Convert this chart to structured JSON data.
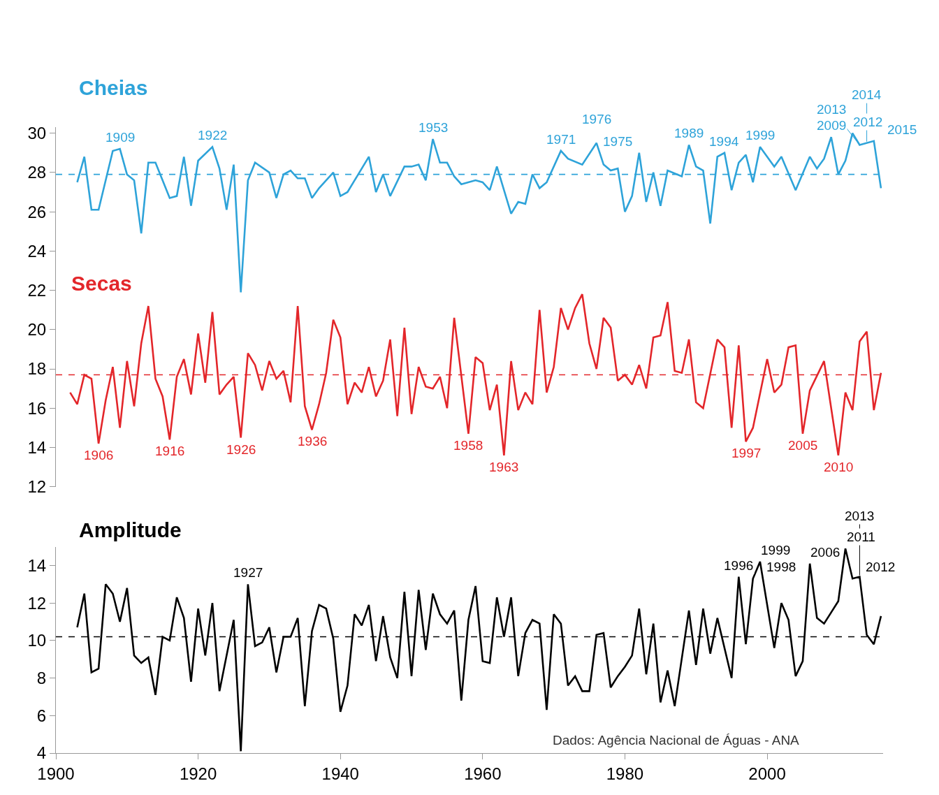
{
  "chart_data": [
    {
      "type": "line",
      "xlim": [
        1900,
        2016.3
      ],
      "ylim": [
        12,
        30.3
      ],
      "yticks": [
        12,
        14,
        16,
        18,
        20,
        22,
        24,
        26,
        28,
        30
      ],
      "tick_labels": "y",
      "series": [
        {
          "name": "Cheias",
          "color": "#2ea3d9",
          "x": [
            1903,
            1904,
            1905,
            1906,
            1908,
            1909,
            1910,
            1911,
            1912,
            1913,
            1914,
            1916,
            1917,
            1918,
            1919,
            1920,
            1922,
            1923,
            1924,
            1925,
            1926,
            1927,
            1928,
            1930,
            1931,
            1932,
            1933,
            1934,
            1935,
            1936,
            1937,
            1939,
            1940,
            1941,
            1944,
            1945,
            1946,
            1947,
            1949,
            1950,
            1951,
            1952,
            1953,
            1954,
            1955,
            1956,
            1957,
            1959,
            1960,
            1961,
            1962,
            1964,
            1965,
            1966,
            1967,
            1968,
            1969,
            1971,
            1972,
            1974,
            1976,
            1977,
            1978,
            1979,
            1980,
            1981,
            1982,
            1983,
            1984,
            1985,
            1986,
            1988,
            1989,
            1990,
            1991,
            1992,
            1993,
            1994,
            1995,
            1996,
            1997,
            1998,
            1999,
            2001,
            2002,
            2004,
            2006,
            2007,
            2008,
            2009,
            2010,
            2011,
            2012,
            2013,
            2015,
            2016
          ],
          "values": [
            27.5,
            28.8,
            26.1,
            26.1,
            29.1,
            29.2,
            27.9,
            27.6,
            24.9,
            28.5,
            28.5,
            26.7,
            26.8,
            28.8,
            26.3,
            28.6,
            29.3,
            28.2,
            26.1,
            28.4,
            21.9,
            27.6,
            28.5,
            28.0,
            26.7,
            27.9,
            28.1,
            27.7,
            27.7,
            26.7,
            27.2,
            28.0,
            26.8,
            27.0,
            28.8,
            27.0,
            27.9,
            26.8,
            28.3,
            28.3,
            28.4,
            27.6,
            29.7,
            28.5,
            28.5,
            27.8,
            27.4,
            27.6,
            27.5,
            27.1,
            28.3,
            25.9,
            26.5,
            26.4,
            27.9,
            27.2,
            27.5,
            29.1,
            28.7,
            28.4,
            29.5,
            28.4,
            28.1,
            28.2,
            26.0,
            26.8,
            29.0,
            26.5,
            28.0,
            26.3,
            28.1,
            27.8,
            29.4,
            28.3,
            28.1,
            25.4,
            28.8,
            29.0,
            27.1,
            28.5,
            28.9,
            27.5,
            29.3,
            28.3,
            28.8,
            27.1,
            28.8,
            28.2,
            28.7,
            29.8,
            27.9,
            28.6,
            30.0,
            29.4,
            29.6,
            27.2
          ]
        },
        {
          "name": "Secas",
          "color": "#e3262a",
          "x": [
            1902,
            1903,
            1904,
            1905,
            1906,
            1907,
            1908,
            1909,
            1910,
            1911,
            1912,
            1913,
            1914,
            1915,
            1916,
            1917,
            1918,
            1919,
            1920,
            1921,
            1922,
            1923,
            1924,
            1925,
            1926,
            1927,
            1928,
            1929,
            1930,
            1931,
            1932,
            1933,
            1934,
            1935,
            1936,
            1937,
            1938,
            1939,
            1940,
            1941,
            1942,
            1943,
            1944,
            1945,
            1946,
            1947,
            1948,
            1949,
            1950,
            1951,
            1952,
            1953,
            1954,
            1955,
            1956,
            1958,
            1959,
            1960,
            1961,
            1962,
            1963,
            1964,
            1965,
            1966,
            1967,
            1968,
            1969,
            1970,
            1971,
            1972,
            1973,
            1974,
            1975,
            1976,
            1977,
            1978,
            1979,
            1980,
            1981,
            1982,
            1983,
            1984,
            1985,
            1986,
            1987,
            1988,
            1989,
            1990,
            1991,
            1993,
            1994,
            1995,
            1996,
            1997,
            1998,
            2000,
            2001,
            2002,
            2003,
            2004,
            2005,
            2006,
            2008,
            2010,
            2011,
            2012,
            2013,
            2014,
            2015,
            2016
          ],
          "values": [
            16.8,
            16.2,
            17.7,
            17.5,
            14.2,
            16.4,
            18.1,
            15.0,
            18.4,
            16.1,
            19.3,
            21.2,
            17.5,
            16.6,
            14.4,
            17.6,
            18.5,
            16.7,
            19.8,
            17.3,
            20.9,
            16.7,
            17.2,
            17.6,
            14.5,
            18.8,
            18.2,
            16.9,
            18.4,
            17.5,
            17.9,
            16.3,
            21.2,
            16.1,
            14.9,
            16.2,
            17.8,
            20.5,
            19.6,
            16.2,
            17.3,
            16.8,
            18.1,
            16.6,
            17.4,
            19.5,
            15.6,
            20.1,
            15.7,
            18.1,
            17.1,
            17.0,
            17.6,
            16.0,
            20.6,
            14.7,
            18.6,
            18.3,
            15.9,
            17.2,
            13.6,
            18.4,
            15.9,
            16.8,
            16.2,
            21.0,
            16.8,
            18.1,
            21.1,
            20.0,
            21.1,
            21.8,
            19.3,
            18.0,
            20.6,
            20.1,
            17.4,
            17.7,
            17.2,
            18.2,
            17.0,
            19.6,
            19.7,
            21.4,
            17.9,
            17.8,
            19.5,
            16.3,
            16.0,
            19.5,
            19.1,
            15.0,
            19.2,
            14.3,
            15.0,
            18.5,
            16.8,
            17.2,
            19.1,
            19.2,
            14.7,
            16.9,
            18.4,
            13.6,
            16.8,
            15.9,
            19.4,
            19.9,
            15.9,
            17.8
          ]
        }
      ],
      "ref_lines": [
        {
          "axis": "y",
          "value": 27.9,
          "color": "#2ea3d9",
          "line_style": "dashed"
        },
        {
          "axis": "y",
          "value": 17.7,
          "color": "#e3262a",
          "line_style": "dashed"
        }
      ],
      "annotations": [
        {
          "text": "1909",
          "x": 1909,
          "y": 29.2
        },
        {
          "text": "1922",
          "x": 1922,
          "y": 29.3
        },
        {
          "text": "1953",
          "x": 1953,
          "y": 29.7
        },
        {
          "text": "1971",
          "x": 1971,
          "y": 29.1
        },
        {
          "text": "1975",
          "x": 1975,
          "y": 29.0
        },
        {
          "text": "1976",
          "x": 1976,
          "y": 29.5
        },
        {
          "text": "1989",
          "x": 1989,
          "y": 29.4
        },
        {
          "text": "1994",
          "x": 1994,
          "y": 29.0
        },
        {
          "text": "1999",
          "x": 1999,
          "y": 29.3
        },
        {
          "text": "2009",
          "x": 2009,
          "y": 29.8
        },
        {
          "text": "2012",
          "x": 2012,
          "y": 30.0
        },
        {
          "text": "2013",
          "x": 2013,
          "y": 29.4
        },
        {
          "text": "2014",
          "x": 2014,
          "y": 29.5
        },
        {
          "text": "2015",
          "x": 2015,
          "y": 29.6
        },
        {
          "text": "1906",
          "x": 1906,
          "y": 14.2
        },
        {
          "text": "1916",
          "x": 1916,
          "y": 14.4
        },
        {
          "text": "1926",
          "x": 1926,
          "y": 14.5
        },
        {
          "text": "1936",
          "x": 1936,
          "y": 14.9
        },
        {
          "text": "1958",
          "x": 1958,
          "y": 14.7
        },
        {
          "text": "1963",
          "x": 1963,
          "y": 13.6
        },
        {
          "text": "1997",
          "x": 1997,
          "y": 14.3
        },
        {
          "text": "2005",
          "x": 2005,
          "y": 14.7
        },
        {
          "text": "2010",
          "x": 2010,
          "y": 13.6
        }
      ]
    },
    {
      "type": "line",
      "xlim": [
        1900,
        2016.3
      ],
      "xticks": [
        1900,
        1920,
        1940,
        1960,
        1980,
        2000
      ],
      "ylim": [
        4,
        15
      ],
      "yticks": [
        4,
        6,
        8,
        10,
        12,
        14
      ],
      "series": [
        {
          "name": "Amplitude",
          "color": "#000000",
          "x": [
            1903,
            1904,
            1905,
            1906,
            1907,
            1908,
            1909,
            1910,
            1911,
            1912,
            1913,
            1914,
            1915,
            1916,
            1917,
            1918,
            1919,
            1920,
            1921,
            1922,
            1923,
            1925,
            1926,
            1927,
            1928,
            1929,
            1930,
            1931,
            1932,
            1933,
            1934,
            1935,
            1936,
            1937,
            1938,
            1939,
            1940,
            1941,
            1942,
            1943,
            1944,
            1945,
            1946,
            1947,
            1948,
            1949,
            1950,
            1951,
            1952,
            1953,
            1954,
            1955,
            1956,
            1957,
            1958,
            1959,
            1960,
            1961,
            1962,
            1963,
            1964,
            1965,
            1966,
            1967,
            1968,
            1969,
            1970,
            1971,
            1972,
            1973,
            1974,
            1975,
            1976,
            1977,
            1978,
            1979,
            1980,
            1981,
            1982,
            1983,
            1984,
            1985,
            1986,
            1987,
            1989,
            1990,
            1991,
            1992,
            1993,
            1995,
            1996,
            1997,
            1998,
            1999,
            2001,
            2002,
            2003,
            2004,
            2005,
            2006,
            2007,
            2008,
            2009,
            2010,
            2011,
            2012,
            2013,
            2014,
            2015,
            2016
          ],
          "values": [
            10.7,
            12.5,
            8.3,
            8.5,
            13.0,
            12.5,
            11.0,
            12.8,
            9.2,
            8.8,
            9.1,
            7.1,
            10.2,
            10.0,
            12.3,
            11.2,
            7.8,
            11.7,
            9.2,
            12.0,
            7.3,
            11.1,
            4.1,
            13.0,
            9.7,
            9.9,
            10.7,
            8.3,
            10.2,
            10.2,
            11.2,
            6.5,
            10.5,
            11.9,
            11.7,
            10.1,
            6.2,
            7.6,
            11.4,
            10.8,
            11.9,
            8.9,
            11.3,
            9.1,
            8.0,
            12.6,
            8.1,
            12.7,
            9.5,
            12.5,
            11.4,
            10.9,
            11.6,
            6.8,
            11.1,
            12.9,
            8.9,
            8.8,
            12.3,
            10.2,
            12.3,
            8.1,
            10.4,
            11.1,
            10.9,
            6.3,
            11.4,
            10.9,
            7.6,
            8.1,
            7.3,
            7.3,
            10.3,
            10.4,
            7.5,
            8.1,
            8.6,
            9.2,
            11.7,
            8.2,
            10.9,
            6.7,
            8.4,
            6.5,
            11.6,
            8.7,
            11.7,
            9.3,
            11.2,
            8.0,
            13.4,
            9.8,
            13.3,
            14.2,
            9.6,
            12.0,
            11.1,
            8.1,
            8.9,
            14.1,
            11.2,
            10.9,
            11.5,
            12.1,
            14.9,
            13.3,
            13.4,
            10.3,
            9.8,
            11.3
          ]
        }
      ],
      "ref_lines": [
        {
          "axis": "y",
          "value": 10.2,
          "color": "#000000",
          "line_style": "dashed"
        }
      ],
      "annotations": [
        "Dados: Agência Nacional de Águas - ANA",
        {
          "text": "1927",
          "x": 1927,
          "y": 13.0
        },
        {
          "text": "1996",
          "x": 1996,
          "y": 13.4
        },
        {
          "text": "1998",
          "x": 1998,
          "y": 13.3
        },
        {
          "text": "1999",
          "x": 1999,
          "y": 14.2
        },
        {
          "text": "2006",
          "x": 2006,
          "y": 14.1
        },
        {
          "text": "2011",
          "x": 2011,
          "y": 14.9
        },
        {
          "text": "2012",
          "x": 2012,
          "y": 13.3
        },
        {
          "text": "2013",
          "x": 2013,
          "y": 13.4
        }
      ]
    }
  ]
}
